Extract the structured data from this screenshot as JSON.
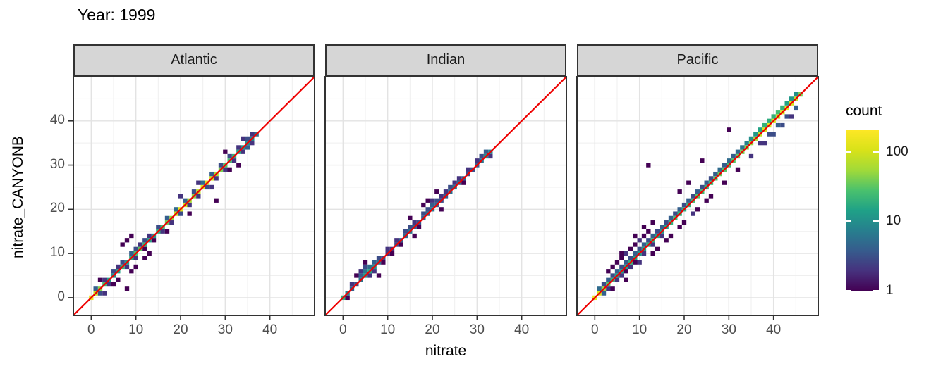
{
  "title": "Year: 1999",
  "facets": [
    "Atlantic",
    "Indian",
    "Pacific"
  ],
  "x_axis": {
    "label": "nitrate",
    "ticks": [
      0,
      10,
      20,
      30,
      40
    ],
    "minor_ticks": [
      5,
      15,
      25,
      35,
      45
    ]
  },
  "y_axis": {
    "label": "nitrate_CANYONB",
    "ticks": [
      0,
      10,
      20,
      30,
      40
    ],
    "minor_ticks": [
      5,
      15,
      25,
      35,
      45
    ]
  },
  "legend": {
    "title": "count",
    "tick_labels": [
      "100",
      "10",
      "1"
    ],
    "tick_values": [
      100,
      10,
      1
    ]
  },
  "colors": {
    "reference_line": "#ee0000",
    "strip_background": "#d6d6d6",
    "panel_border": "#333333",
    "grid_major": "#e3e3e3",
    "grid_minor": "#efefef",
    "tick_text": "#4d4d4d",
    "viridis_stops": [
      "#440154",
      "#46327e",
      "#365c8d",
      "#277f8e",
      "#1fa187",
      "#4ac16d",
      "#a0da39",
      "#d8e219",
      "#fde725"
    ]
  },
  "chart_data": {
    "type": "heatmap",
    "subtype": "bin2d-faceted-scatter-density",
    "title": "Year: 1999",
    "xlabel": "nitrate",
    "ylabel": "nitrate_CANYONB",
    "xlim": [
      -4,
      50
    ],
    "ylim": [
      -4,
      50
    ],
    "x_ticks": [
      0,
      10,
      20,
      30,
      40
    ],
    "y_ticks": [
      0,
      10,
      20,
      30,
      40
    ],
    "grid": "major+minor every 5 units",
    "legend_position": "right",
    "count_scale": {
      "type": "log",
      "min": 1,
      "max": 205,
      "legend_ticks": [
        1,
        10,
        100
      ]
    },
    "reference_line": {
      "type": "y = x",
      "color": "#ee0000"
    },
    "bin_size": 1.0,
    "facets": [
      {
        "name": "Atlantic",
        "diag_start": 0,
        "diag_step": 1,
        "diag_counts": [
          150,
          90,
          45,
          25,
          14,
          10,
          15,
          22,
          14,
          18,
          26,
          32,
          20,
          15,
          12,
          18,
          26,
          36,
          50,
          85,
          120,
          95,
          60,
          45,
          80,
          115,
          130,
          95,
          60,
          40,
          30,
          26,
          20,
          15,
          12,
          10,
          8,
          5
        ],
        "extra_bins": [
          [
            1,
            2,
            4
          ],
          [
            2,
            1,
            3
          ],
          [
            3,
            4,
            2
          ],
          [
            4,
            3,
            2
          ],
          [
            5,
            6,
            3
          ],
          [
            6,
            4,
            1
          ],
          [
            6,
            7,
            2
          ],
          [
            7,
            8,
            3
          ],
          [
            8,
            7,
            2
          ],
          [
            9,
            10,
            4
          ],
          [
            10,
            9,
            2
          ],
          [
            10,
            11,
            3
          ],
          [
            11,
            12,
            2
          ],
          [
            12,
            11,
            1
          ],
          [
            12,
            13,
            3
          ],
          [
            13,
            14,
            2
          ],
          [
            14,
            13,
            1
          ],
          [
            15,
            16,
            3
          ],
          [
            16,
            15,
            2
          ],
          [
            17,
            18,
            4
          ],
          [
            18,
            17,
            2
          ],
          [
            19,
            20,
            5
          ],
          [
            20,
            19,
            3
          ],
          [
            21,
            22,
            4
          ],
          [
            22,
            21,
            2
          ],
          [
            23,
            24,
            3
          ],
          [
            24,
            23,
            2
          ],
          [
            25,
            26,
            5
          ],
          [
            26,
            25,
            3
          ],
          [
            27,
            28,
            4
          ],
          [
            28,
            27,
            2
          ],
          [
            29,
            30,
            3
          ],
          [
            30,
            29,
            2
          ],
          [
            31,
            32,
            3
          ],
          [
            32,
            31,
            2
          ],
          [
            33,
            34,
            2
          ],
          [
            34,
            33,
            2
          ],
          [
            35,
            36,
            3
          ],
          [
            36,
            35,
            2
          ],
          [
            35,
            34,
            4
          ],
          [
            36,
            37,
            2
          ],
          [
            9,
            6,
            1
          ],
          [
            10,
            7,
            1
          ],
          [
            8,
            13,
            1
          ],
          [
            9,
            14,
            1
          ],
          [
            7,
            12,
            1
          ],
          [
            28,
            22,
            1
          ],
          [
            8,
            2,
            1
          ],
          [
            12,
            9,
            1
          ],
          [
            20,
            23,
            2
          ],
          [
            22,
            19,
            1
          ],
          [
            30,
            33,
            1
          ],
          [
            33,
            30,
            1
          ],
          [
            34,
            36,
            2
          ],
          [
            5,
            3,
            1
          ],
          [
            3,
            1,
            2
          ],
          [
            2,
            4,
            1
          ],
          [
            13,
            10,
            1
          ],
          [
            17,
            15,
            1
          ],
          [
            24,
            26,
            2
          ],
          [
            27,
            25,
            2
          ],
          [
            31,
            29,
            1
          ]
        ]
      },
      {
        "name": "Indian",
        "diag_start": 0,
        "diag_step": 1,
        "diag_counts": [
          20,
          8,
          4,
          3,
          6,
          12,
          16,
          10,
          6,
          3,
          2,
          2,
          3,
          4,
          5,
          6,
          4,
          3,
          4,
          5,
          6,
          4,
          3,
          4,
          5,
          6,
          5,
          4,
          3,
          3,
          4,
          6,
          10,
          8
        ],
        "extra_bins": [
          [
            1,
            0,
            1
          ],
          [
            2,
            3,
            2
          ],
          [
            4,
            5,
            4
          ],
          [
            5,
            6,
            6
          ],
          [
            5,
            7,
            3
          ],
          [
            6,
            7,
            5
          ],
          [
            6,
            5,
            2
          ],
          [
            7,
            8,
            4
          ],
          [
            7,
            6,
            2
          ],
          [
            4,
            6,
            2
          ],
          [
            3,
            5,
            1
          ],
          [
            8,
            9,
            3
          ],
          [
            9,
            8,
            1
          ],
          [
            5,
            8,
            1
          ],
          [
            8,
            5,
            1
          ],
          [
            10,
            11,
            2
          ],
          [
            12,
            13,
            2
          ],
          [
            13,
            12,
            1
          ],
          [
            14,
            15,
            3
          ],
          [
            15,
            16,
            3
          ],
          [
            16,
            17,
            2
          ],
          [
            17,
            16,
            1
          ],
          [
            18,
            19,
            3
          ],
          [
            19,
            20,
            3
          ],
          [
            20,
            21,
            4
          ],
          [
            20,
            22,
            2
          ],
          [
            21,
            22,
            3
          ],
          [
            22,
            23,
            2
          ],
          [
            21,
            24,
            1
          ],
          [
            23,
            24,
            2
          ],
          [
            24,
            25,
            3
          ],
          [
            19,
            22,
            1
          ],
          [
            25,
            26,
            2
          ],
          [
            26,
            27,
            2
          ],
          [
            27,
            26,
            1
          ],
          [
            28,
            29,
            2
          ],
          [
            30,
            31,
            2
          ],
          [
            31,
            32,
            3
          ],
          [
            32,
            33,
            4
          ],
          [
            33,
            32,
            2
          ],
          [
            16,
            14,
            1
          ],
          [
            22,
            20,
            1
          ],
          [
            11,
            10,
            1
          ],
          [
            18,
            21,
            1
          ],
          [
            15,
            18,
            1
          ]
        ]
      },
      {
        "name": "Pacific",
        "diag_start": 0,
        "diag_step": 1,
        "diag_counts": [
          140,
          100,
          50,
          30,
          20,
          15,
          12,
          15,
          20,
          15,
          12,
          15,
          18,
          20,
          15,
          12,
          15,
          20,
          25,
          20,
          18,
          20,
          25,
          30,
          25,
          20,
          25,
          30,
          35,
          30,
          25,
          30,
          35,
          40,
          45,
          50,
          60,
          80,
          100,
          120,
          100,
          90,
          110,
          130,
          100,
          80,
          40
        ],
        "extra_bins": [
          [
            1,
            2,
            5
          ],
          [
            2,
            1,
            4
          ],
          [
            2,
            3,
            3
          ],
          [
            3,
            2,
            2
          ],
          [
            3,
            4,
            4
          ],
          [
            4,
            5,
            3
          ],
          [
            5,
            4,
            2
          ],
          [
            5,
            6,
            4
          ],
          [
            6,
            7,
            3
          ],
          [
            6,
            5,
            2
          ],
          [
            7,
            8,
            4
          ],
          [
            7,
            6,
            1
          ],
          [
            8,
            9,
            3
          ],
          [
            8,
            7,
            2
          ],
          [
            9,
            10,
            4
          ],
          [
            9,
            8,
            1
          ],
          [
            10,
            11,
            3
          ],
          [
            11,
            12,
            4
          ],
          [
            11,
            10,
            2
          ],
          [
            12,
            13,
            3
          ],
          [
            13,
            14,
            4
          ],
          [
            13,
            12,
            2
          ],
          [
            14,
            15,
            3
          ],
          [
            15,
            16,
            4
          ],
          [
            15,
            14,
            2
          ],
          [
            16,
            17,
            3
          ],
          [
            17,
            18,
            4
          ],
          [
            18,
            19,
            3
          ],
          [
            19,
            20,
            4
          ],
          [
            20,
            21,
            3
          ],
          [
            21,
            22,
            4
          ],
          [
            22,
            23,
            3
          ],
          [
            23,
            24,
            4
          ],
          [
            24,
            25,
            3
          ],
          [
            25,
            26,
            4
          ],
          [
            26,
            27,
            3
          ],
          [
            27,
            28,
            4
          ],
          [
            28,
            29,
            5
          ],
          [
            29,
            30,
            4
          ],
          [
            30,
            31,
            5
          ],
          [
            31,
            32,
            4
          ],
          [
            32,
            33,
            5
          ],
          [
            33,
            34,
            6
          ],
          [
            34,
            35,
            8
          ],
          [
            35,
            36,
            10
          ],
          [
            36,
            37,
            12
          ],
          [
            37,
            38,
            15
          ],
          [
            38,
            39,
            20
          ],
          [
            39,
            40,
            18
          ],
          [
            40,
            41,
            20
          ],
          [
            41,
            42,
            25
          ],
          [
            42,
            43,
            20
          ],
          [
            43,
            44,
            15
          ],
          [
            44,
            45,
            12
          ],
          [
            45,
            46,
            10
          ],
          [
            5,
            8,
            1
          ],
          [
            6,
            9,
            1
          ],
          [
            7,
            10,
            2
          ],
          [
            8,
            11,
            1
          ],
          [
            9,
            12,
            1
          ],
          [
            10,
            13,
            2
          ],
          [
            11,
            14,
            1
          ],
          [
            12,
            15,
            1
          ],
          [
            6,
            10,
            1
          ],
          [
            9,
            14,
            1
          ],
          [
            11,
            16,
            1
          ],
          [
            13,
            17,
            1
          ],
          [
            12,
            30,
            1
          ],
          [
            30,
            38,
            1
          ],
          [
            24,
            31,
            1
          ],
          [
            21,
            26,
            1
          ],
          [
            19,
            24,
            1
          ],
          [
            4,
            7,
            1
          ],
          [
            3,
            6,
            1
          ],
          [
            4,
            2,
            1
          ],
          [
            7,
            4,
            1
          ],
          [
            10,
            8,
            2
          ],
          [
            13,
            10,
            1
          ],
          [
            16,
            13,
            1
          ],
          [
            19,
            16,
            1
          ],
          [
            22,
            19,
            2
          ],
          [
            25,
            22,
            1
          ],
          [
            20,
            17,
            1
          ],
          [
            23,
            20,
            1
          ],
          [
            14,
            11,
            1
          ],
          [
            17,
            14,
            1
          ],
          [
            26,
            23,
            1
          ],
          [
            29,
            26,
            1
          ],
          [
            32,
            29,
            1
          ],
          [
            35,
            32,
            2
          ],
          [
            38,
            35,
            2
          ],
          [
            40,
            37,
            3
          ],
          [
            42,
            39,
            3
          ],
          [
            44,
            41,
            2
          ],
          [
            45,
            43,
            4
          ],
          [
            43,
            41,
            3
          ],
          [
            41,
            39,
            4
          ],
          [
            39,
            37,
            3
          ],
          [
            37,
            35,
            2
          ]
        ]
      }
    ]
  }
}
